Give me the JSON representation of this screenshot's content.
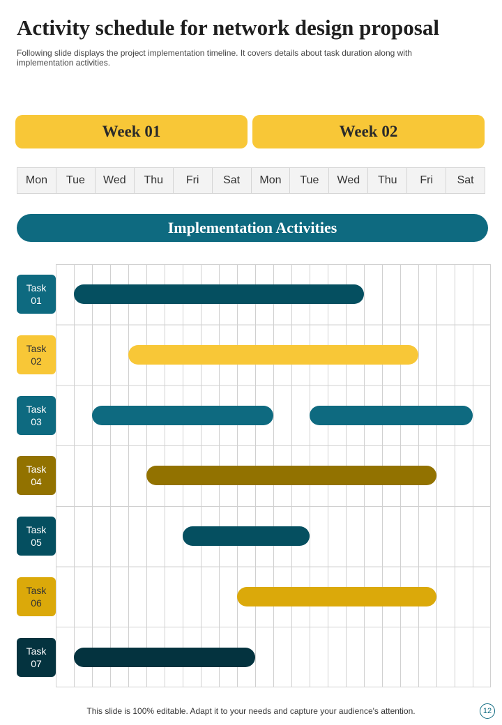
{
  "title": "Activity schedule for network design proposal",
  "subtitle": "Following slide displays the project implementation timeline. It covers details about task duration along with implementation activities.",
  "weeks": [
    "Week 01",
    "Week 02"
  ],
  "days": [
    "Mon",
    "Tue",
    "Wed",
    "Thu",
    "Fri",
    "Sat",
    "Mon",
    "Tue",
    "Wed",
    "Thu",
    "Fri",
    "Sat"
  ],
  "section_heading": "Implementation Activities",
  "colors": {
    "yellow": "#f8c737",
    "teal": "#0e6a80",
    "dark_teal": "#054f60",
    "olive": "#927200",
    "gold": "#dba90a",
    "navy": "#04333f"
  },
  "tasks": [
    {
      "label": "Task\n01",
      "label_color": "#0e6a80",
      "label_text": "#ffffff",
      "bars": [
        {
          "start": 1,
          "end": 17,
          "color": "#054f60"
        }
      ]
    },
    {
      "label": "Task\n02",
      "label_color": "#f8c737",
      "label_text": "#333333",
      "bars": [
        {
          "start": 4,
          "end": 20,
          "color": "#f8c737"
        }
      ]
    },
    {
      "label": "Task\n03",
      "label_color": "#0e6a80",
      "label_text": "#ffffff",
      "bars": [
        {
          "start": 2,
          "end": 12,
          "color": "#0e6a80"
        },
        {
          "start": 14,
          "end": 23,
          "color": "#0e6a80"
        }
      ]
    },
    {
      "label": "Task\n04",
      "label_color": "#927200",
      "label_text": "#ffffff",
      "bars": [
        {
          "start": 5,
          "end": 21,
          "color": "#927200"
        }
      ]
    },
    {
      "label": "Task\n05",
      "label_color": "#054f60",
      "label_text": "#ffffff",
      "bars": [
        {
          "start": 7,
          "end": 14,
          "color": "#054f60"
        }
      ]
    },
    {
      "label": "Task\n06",
      "label_color": "#dba90a",
      "label_text": "#333333",
      "bars": [
        {
          "start": 10,
          "end": 21,
          "color": "#dba90a"
        }
      ]
    },
    {
      "label": "Task\n07",
      "label_color": "#04333f",
      "label_text": "#ffffff",
      "bars": [
        {
          "start": 1,
          "end": 11,
          "color": "#04333f"
        }
      ]
    }
  ],
  "footer": "This slide is 100% editable. Adapt it to your needs and capture your audience's attention.",
  "page_number": "12"
}
